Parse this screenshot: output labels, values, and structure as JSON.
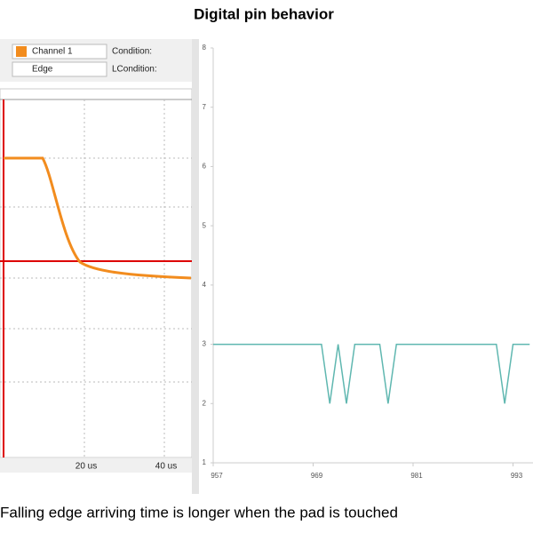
{
  "title": "Digital pin behavior",
  "caption": "Falling edge arriving time is longer when the pad is touched",
  "scope": {
    "channel": "Channel 1",
    "condition": "Condition:",
    "edge": "Edge",
    "lcondition": "LCondition:",
    "time_labels": [
      "20 us",
      "40 us"
    ]
  },
  "chart_data": {
    "type": "line",
    "x": [
      957,
      970,
      971,
      972,
      973,
      974,
      977,
      978,
      979,
      991,
      992,
      993,
      995
    ],
    "series": [
      {
        "color": "#5fb7b0",
        "values": [
          3,
          3,
          2,
          3,
          2,
          3,
          3,
          2,
          3,
          3,
          2,
          3,
          3
        ]
      }
    ],
    "xlim": [
      957,
      995.4
    ],
    "xticks": [
      957,
      969,
      981,
      993
    ],
    "ylim": [
      1,
      8
    ],
    "yticks": [
      1,
      2,
      3,
      4,
      5,
      6,
      7,
      8
    ]
  }
}
